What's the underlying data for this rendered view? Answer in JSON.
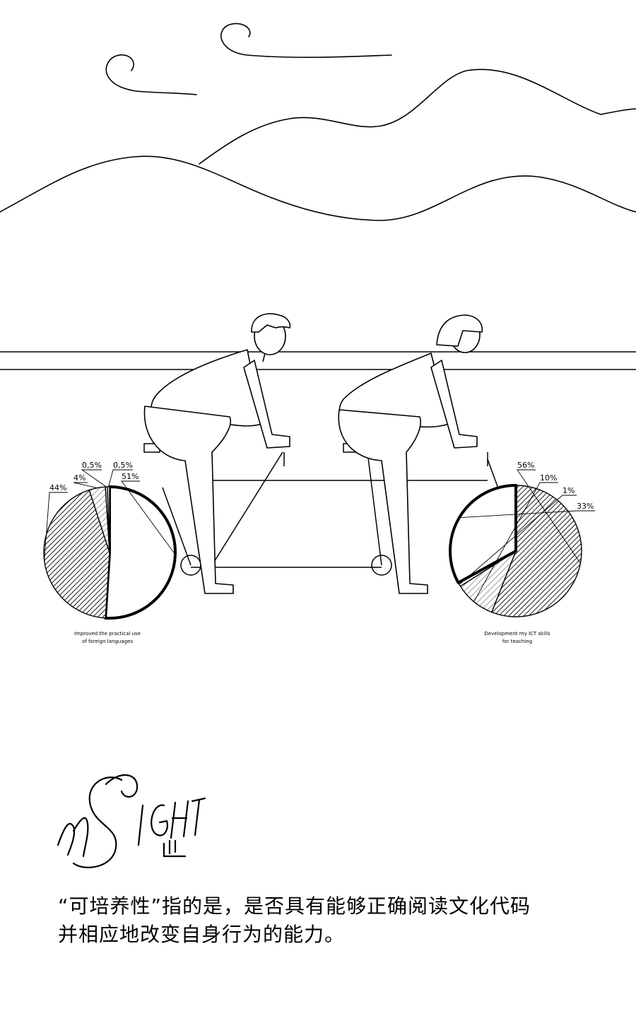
{
  "caption": {
    "line1": "“可培养性”指的是，是否具有能够正确阅读文化代码",
    "line2": "并相应地改变自身行为的能力。"
  },
  "logo": {
    "text": "InSIGHT"
  },
  "chart_data": [
    {
      "type": "pie",
      "title": "Improved the practical use of foreign languages",
      "title_lines": [
        "Improved the practical use",
        "of foreign languages"
      ],
      "slices": [
        {
          "label": "51%",
          "value": 51,
          "style": "bold-outline"
        },
        {
          "label": "44%",
          "value": 44,
          "style": "hatched"
        },
        {
          "label": "4%",
          "value": 4,
          "style": "hatched-light"
        },
        {
          "label": "0,5%",
          "value": 0.5,
          "style": "plain"
        },
        {
          "label": "0,5%",
          "value": 0.5,
          "style": "plain"
        }
      ]
    },
    {
      "type": "pie",
      "title": "Development my ICT skills for teaching",
      "title_lines": [
        "Development my ICT skills",
        "for teaching"
      ],
      "slices": [
        {
          "label": "56%",
          "value": 56,
          "style": "hatched"
        },
        {
          "label": "10%",
          "value": 10,
          "style": "hatched-light"
        },
        {
          "label": "1%",
          "value": 1,
          "style": "plain"
        },
        {
          "label": "33%",
          "value": 33,
          "style": "bold-outline"
        }
      ]
    }
  ]
}
